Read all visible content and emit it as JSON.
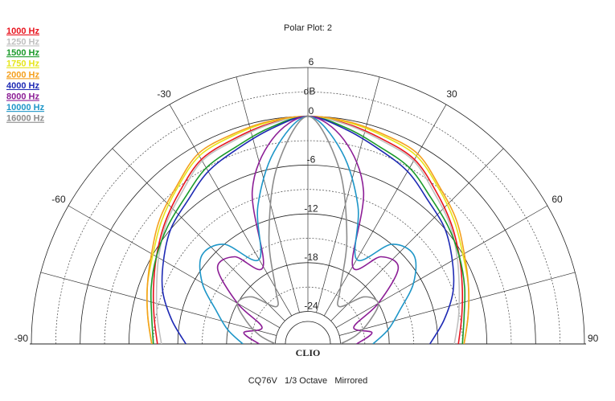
{
  "chart_data": {
    "type": "polar",
    "title": "Polar Plot: 2",
    "footer": "CQ76V   1/3 Octave   Mirrored",
    "center_label": "CLIO",
    "r_label": "dB",
    "theta": [
      -90,
      -80,
      -70,
      -60,
      -50,
      -40,
      -30,
      -20,
      -10,
      0,
      10,
      20,
      30,
      40,
      50,
      60,
      70,
      80,
      90
    ],
    "thetalim": [
      -90,
      90
    ],
    "thetaticks": [
      -90,
      -60,
      -30,
      30,
      60,
      90
    ],
    "thetagrid": [
      -90,
      -75,
      -60,
      -45,
      -30,
      -15,
      0,
      15,
      30,
      45,
      60,
      75,
      90
    ],
    "rlim": [
      -28,
      6
    ],
    "rticks": [
      6,
      0,
      -6,
      -12,
      -18,
      -24
    ],
    "rminor": [
      3,
      -3,
      -9,
      -15,
      -21
    ],
    "series": [
      {
        "name": "1000 Hz",
        "color": "#e8141e",
        "values": [
          -9.5,
          -8.8,
          -7.8,
          -6.5,
          -5,
          -3.5,
          -1.8,
          -1.2,
          -0.5,
          0,
          -0.5,
          -1.2,
          -1.8,
          -3.5,
          -5,
          -6.5,
          -7.8,
          -8.8,
          -9.5
        ]
      },
      {
        "name": "1250 Hz",
        "color": "#c0c0c0",
        "values": [
          -10,
          -9.2,
          -8.2,
          -6.8,
          -5.2,
          -3.8,
          -2,
          -1.4,
          -0.6,
          0,
          -0.6,
          -1.4,
          -2,
          -3.8,
          -5.2,
          -6.8,
          -8.2,
          -9.2,
          -10
        ]
      },
      {
        "name": "1500 Hz",
        "color": "#1a9a2a",
        "values": [
          -9,
          -8.5,
          -7.5,
          -6.5,
          -5.5,
          -4.5,
          -3,
          -2.2,
          -1,
          0,
          -1,
          -2.2,
          -3,
          -4.5,
          -5.5,
          -6.5,
          -7.5,
          -8.5,
          -9
        ]
      },
      {
        "name": "1750 Hz",
        "color": "#e6e61a",
        "values": [
          -8.8,
          -8,
          -7,
          -6,
          -4.5,
          -3,
          -1.3,
          -0.8,
          -0.3,
          0,
          -0.3,
          -0.8,
          -1.3,
          -3,
          -4.5,
          -6,
          -7,
          -8,
          -8.8
        ]
      },
      {
        "name": "2000 Hz",
        "color": "#f5a01e",
        "values": [
          -8.8,
          -8,
          -7,
          -5.8,
          -4.2,
          -2.8,
          -1,
          -0.6,
          -0.2,
          0,
          -0.2,
          -0.6,
          -1,
          -2.8,
          -4.2,
          -5.8,
          -7,
          -8,
          -8.8
        ]
      },
      {
        "name": "4000 Hz",
        "color": "#1e2ab4",
        "values": [
          -13,
          -11,
          -9,
          -7.5,
          -6,
          -5,
          -3.5,
          -2.5,
          -1.2,
          0,
          -1.2,
          -2.5,
          -3.5,
          -5,
          -6,
          -7.5,
          -9,
          -11,
          -13
        ]
      },
      {
        "name": "8000 Hz",
        "color": "#8c1e96",
        "values": [
          -22,
          -20,
          -22,
          -18,
          -13.5,
          -14,
          -17,
          -8,
          -2.5,
          0,
          -2.5,
          -8,
          -17,
          -14,
          -13.5,
          -18,
          -22,
          -20,
          -22
        ]
      },
      {
        "name": "10000 Hz",
        "color": "#1e96c8",
        "values": [
          -20,
          -18,
          -16,
          -13,
          -11,
          -12,
          -16,
          -10,
          -4,
          0,
          -4,
          -10,
          -16,
          -12,
          -11,
          -13,
          -16,
          -18,
          -20
        ]
      },
      {
        "name": "16000 Hz",
        "color": "#8c8c8c",
        "values": [
          -24,
          -22,
          -20,
          -18,
          -19,
          -22,
          -20,
          -14,
          -6,
          0,
          -6,
          -14,
          -20,
          -22,
          -19,
          -18,
          -20,
          -22,
          -24
        ]
      }
    ]
  }
}
